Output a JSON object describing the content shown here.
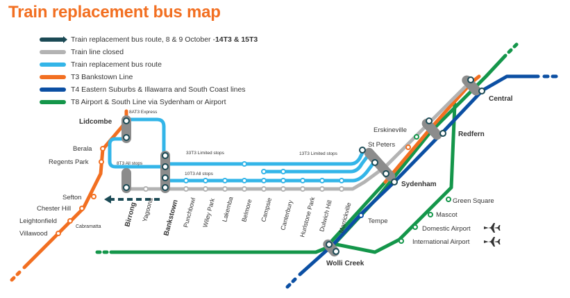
{
  "title": "Train replacement bus map",
  "legend": [
    {
      "text": "Train replacement bus route, 8 & 9 October - ",
      "bold": "14T3 & 15T3",
      "color": "#1b4a55",
      "icon": "dark-route-swatch"
    },
    {
      "text": "Train line closed",
      "bold": "",
      "color": "#b3b3b3",
      "icon": "closed-line-swatch"
    },
    {
      "text": "Train replacement bus route",
      "bold": "",
      "color": "#33b5e8",
      "icon": "bus-route-swatch"
    },
    {
      "text": "T3 Bankstown Line",
      "bold": "",
      "color": "#f26f21",
      "icon": "t3-line-swatch"
    },
    {
      "text": "T4 Eastern Suburbs & Illawarra and South Coast lines",
      "bold": "",
      "color": "#0b4fa3",
      "icon": "t4-line-swatch"
    },
    {
      "text": "T8 Airport & South Line via Sydenham or Airport",
      "bold": "",
      "color": "#14964a",
      "icon": "t8-line-swatch"
    }
  ],
  "colors": {
    "t3": "#f26f21",
    "t4": "#0b4fa3",
    "t8": "#14964a",
    "bus": "#33b5e8",
    "closed": "#b3b3b3",
    "dark": "#1b4a55",
    "interchange": "#8c8c8c"
  },
  "route_labels": {
    "express": "8AT3 Express",
    "all_stops_8": "8T3 All stops",
    "limited_33": "33T3 Limited stops",
    "all_stops_10": "10T3 All stops",
    "limited_13": "13T3 Limited stops"
  },
  "stations": {
    "lidcombe": "Lidcombe",
    "berala": "Berala",
    "regents_park": "Regents Park",
    "sefton": "Sefton",
    "chester_hill": "Chester Hill",
    "leightonfield": "Leightonfield",
    "villawood": "Villawood",
    "cabramatta": "Cabramatta",
    "birrong": "Birrong",
    "yagoona": "Yagoona",
    "bankstown": "Bankstown",
    "punchbowl": "Punchbowl",
    "wiley_park": "Wiley Park",
    "lakemba": "Lakemba",
    "belmore": "Belmore",
    "campsie": "Campsie",
    "canterbury": "Canterbury",
    "hurlstone_park": "Hurlstone Park",
    "dulwich_hill": "Dulwich Hill",
    "marrickville": "Marrickville",
    "erskineville": "Erskineville",
    "st_peters": "St Peters",
    "sydenham": "Sydenham",
    "redfern": "Redfern",
    "central": "Central",
    "tempe": "Tempe",
    "wolli_creek": "Wolli Creek",
    "green_square": "Green Square",
    "mascot": "Mascot",
    "domestic_airport": "Domestic Airport",
    "international_airport": "International Airport"
  }
}
